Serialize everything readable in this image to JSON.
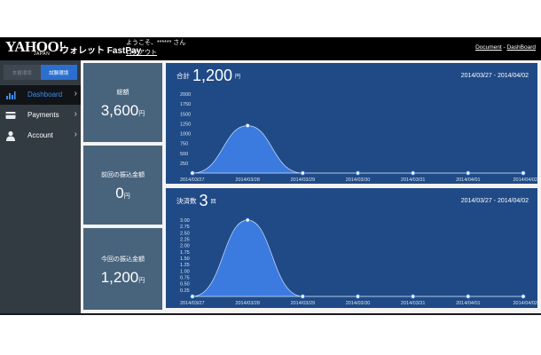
{
  "header": {
    "logo": "YAHOO!",
    "logo_sub": "JAPAN",
    "app_name": "ウォレット FastPay",
    "welcome": "ようこそ、****** さん",
    "logout": "ログアウト",
    "link_document": "Document",
    "link_separator": " - ",
    "link_dashboard": "DashBoard"
  },
  "sidebar": {
    "env_production": "本番環境",
    "env_test": "試験環境",
    "items": [
      {
        "label": "Dashboard",
        "icon": "bar-chart-icon",
        "active": true
      },
      {
        "label": "Payments",
        "icon": "credit-card-icon",
        "active": false
      },
      {
        "label": "Account",
        "icon": "user-icon",
        "active": false
      }
    ]
  },
  "cards": [
    {
      "title": "総額",
      "value": "3,600",
      "unit": "円"
    },
    {
      "title": "前回の振込金額",
      "value": "0",
      "unit": "円"
    },
    {
      "title": "今回の振込金額",
      "value": "1,200",
      "unit": "円"
    }
  ],
  "panels": [
    {
      "label": "合計",
      "value": "1,200",
      "unit": "円",
      "range": "2014/03/27 - 2014/04/02"
    },
    {
      "label": "決済数",
      "value": "3",
      "unit": "回",
      "range": "2014/03/27 - 2014/04/02"
    }
  ],
  "colors": {
    "header_bg": "#000000",
    "sidebar_bg": "#323a42",
    "accent": "#2a6fd0",
    "card_bg": "#48637c",
    "panel_bg": "#1f4a86",
    "area_fill": "#3b7be0"
  },
  "chart_data": [
    {
      "type": "area",
      "x": [
        "2014/03/27",
        "2014/03/28",
        "2014/03/29",
        "2014/03/30",
        "2014/03/31",
        "2014/04/01",
        "2014/04/02"
      ],
      "values": [
        0,
        1200,
        0,
        0,
        0,
        0,
        0
      ],
      "y_ticks": [
        "250",
        "500",
        "750",
        "1000",
        "1250",
        "1500",
        "1750",
        "2000"
      ],
      "ylim": [
        0,
        2000
      ],
      "grid": false
    },
    {
      "type": "area",
      "x": [
        "2014/03/27",
        "2014/03/28",
        "2014/03/29",
        "2014/03/30",
        "2014/03/31",
        "2014/04/01",
        "2014/04/02"
      ],
      "values": [
        0,
        3,
        0,
        0,
        0,
        0,
        0
      ],
      "y_ticks": [
        "0.25",
        "0.50",
        "0.75",
        "1.00",
        "1.25",
        "1.50",
        "1.75",
        "2.00",
        "2.25",
        "2.50",
        "2.75",
        "3.00"
      ],
      "ylim": [
        0,
        3
      ],
      "grid": false
    }
  ]
}
